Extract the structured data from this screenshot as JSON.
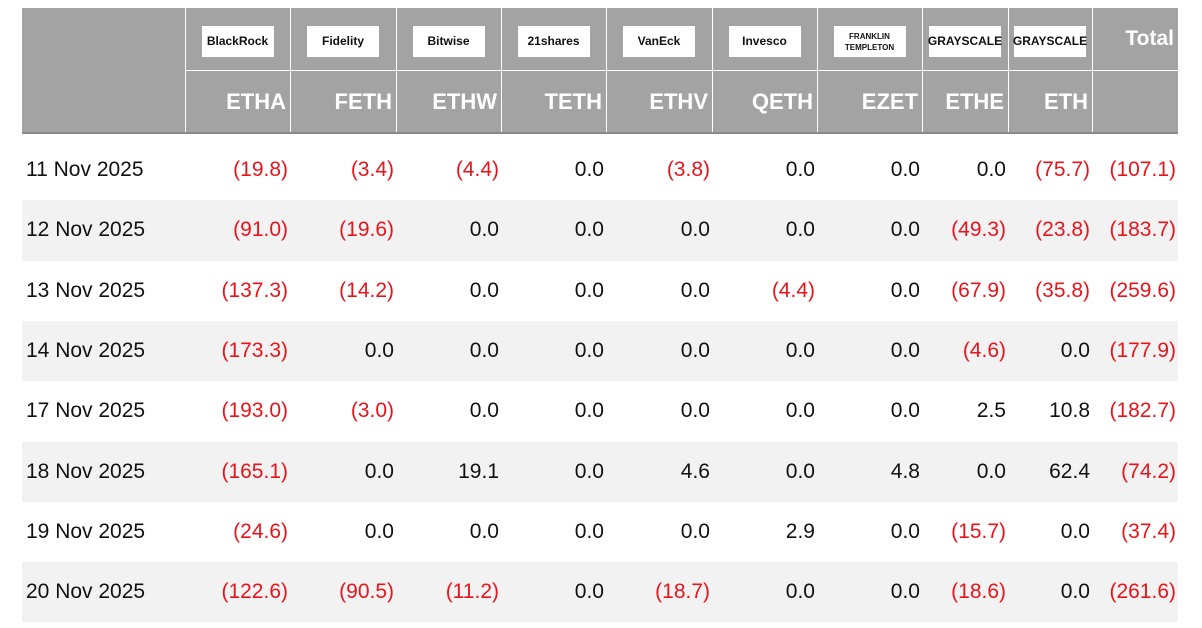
{
  "table": {
    "columns": [
      {
        "logo": "BlackRock",
        "ticker": "ETHA"
      },
      {
        "logo": "Fidelity",
        "ticker": "FETH"
      },
      {
        "logo": "Bitwise",
        "ticker": "ETHW"
      },
      {
        "logo": "21shares",
        "ticker": "TETH"
      },
      {
        "logo": "VanEck",
        "ticker": "ETHV"
      },
      {
        "logo": "Invesco",
        "ticker": "QETH"
      },
      {
        "logo": "FRANKLIN TEMPLETON",
        "ticker": "EZET"
      },
      {
        "logo": "GRAYSCALE",
        "ticker": "ETHE"
      },
      {
        "logo": "GRAYSCALE",
        "ticker": "ETH"
      }
    ],
    "total_header": "Total",
    "rows": [
      [
        "11 Nov 2025",
        "(19.8)",
        "(3.4)",
        "(4.4)",
        "0.0",
        "(3.8)",
        "0.0",
        "0.0",
        "0.0",
        "(75.7)",
        "(107.1)"
      ],
      [
        "12 Nov 2025",
        "(91.0)",
        "(19.6)",
        "0.0",
        "0.0",
        "0.0",
        "0.0",
        "0.0",
        "(49.3)",
        "(23.8)",
        "(183.7)"
      ],
      [
        "13 Nov 2025",
        "(137.3)",
        "(14.2)",
        "0.0",
        "0.0",
        "0.0",
        "(4.4)",
        "0.0",
        "(67.9)",
        "(35.8)",
        "(259.6)"
      ],
      [
        "14 Nov 2025",
        "(173.3)",
        "0.0",
        "0.0",
        "0.0",
        "0.0",
        "0.0",
        "0.0",
        "(4.6)",
        "0.0",
        "(177.9)"
      ],
      [
        "17 Nov 2025",
        "(193.0)",
        "(3.0)",
        "0.0",
        "0.0",
        "0.0",
        "0.0",
        "0.0",
        "2.5",
        "10.8",
        "(182.7)"
      ],
      [
        "18 Nov 2025",
        "(165.1)",
        "0.0",
        "19.1",
        "0.0",
        "4.6",
        "0.0",
        "4.8",
        "0.0",
        "62.4",
        "(74.2)"
      ],
      [
        "19 Nov 2025",
        "(24.6)",
        "0.0",
        "0.0",
        "0.0",
        "0.0",
        "2.9",
        "0.0",
        "(15.7)",
        "0.0",
        "(37.4)"
      ],
      [
        "20 Nov 2025",
        "(122.6)",
        "(90.5)",
        "(11.2)",
        "0.0",
        "(18.7)",
        "0.0",
        "0.0",
        "(18.6)",
        "0.0",
        "(261.6)"
      ]
    ]
  }
}
